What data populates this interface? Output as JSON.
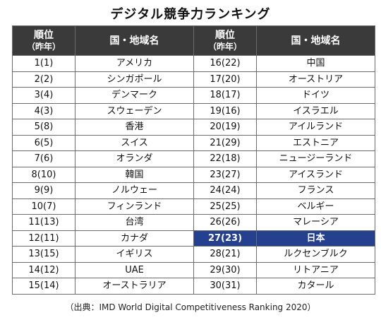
{
  "title": "デジタル競争力ランキング",
  "columns": {
    "rank": "順位",
    "rank_sub": "（昨年）",
    "name": "国・地域名"
  },
  "highlight_color": "#25408f",
  "header_color": "#3a3a3a",
  "source": "（出典：IMD World Digital Competitiveness Ranking 2020）",
  "chart_data": {
    "type": "table",
    "title": "デジタル競争力ランキング",
    "columns": [
      "順位（昨年）",
      "国・地域名"
    ],
    "rows": [
      {
        "rank": "1(1)",
        "name": "アメリカ"
      },
      {
        "rank": "2(2)",
        "name": "シンガポール"
      },
      {
        "rank": "3(4)",
        "name": "デンマーク"
      },
      {
        "rank": "4(3)",
        "name": "スウェーデン"
      },
      {
        "rank": "5(8)",
        "name": "香港"
      },
      {
        "rank": "6(5)",
        "name": "スイス"
      },
      {
        "rank": "7(6)",
        "name": "オランダ"
      },
      {
        "rank": "8(10)",
        "name": "韓国"
      },
      {
        "rank": "9(9)",
        "name": "ノルウェー"
      },
      {
        "rank": "10(7)",
        "name": "フィンランド"
      },
      {
        "rank": "11(13)",
        "name": "台湾"
      },
      {
        "rank": "12(11)",
        "name": "カナダ"
      },
      {
        "rank": "13(15)",
        "name": "イギリス"
      },
      {
        "rank": "14(12)",
        "name": "UAE"
      },
      {
        "rank": "15(14)",
        "name": "オーストラリア"
      },
      {
        "rank": "16(22)",
        "name": "中国"
      },
      {
        "rank": "17(20)",
        "name": "オーストリア"
      },
      {
        "rank": "18(17)",
        "name": "ドイツ"
      },
      {
        "rank": "19(16)",
        "name": "イスラエル"
      },
      {
        "rank": "20(19)",
        "name": "アイルランド"
      },
      {
        "rank": "21(29)",
        "name": "エストニア"
      },
      {
        "rank": "22(18)",
        "name": "ニュージーランド"
      },
      {
        "rank": "23(27)",
        "name": "アイスランド"
      },
      {
        "rank": "24(24)",
        "name": "フランス"
      },
      {
        "rank": "25(25)",
        "name": "ベルギー"
      },
      {
        "rank": "26(26)",
        "name": "マレーシア"
      },
      {
        "rank": "27(23)",
        "name": "日本",
        "highlight": true
      },
      {
        "rank": "28(21)",
        "name": "ルクセンブルク"
      },
      {
        "rank": "29(30)",
        "name": "リトアニア"
      },
      {
        "rank": "30(31)",
        "name": "カタール"
      }
    ]
  }
}
